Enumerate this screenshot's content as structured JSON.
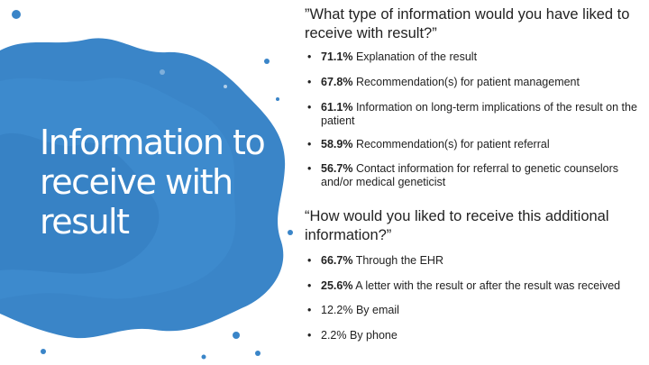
{
  "colors": {
    "splash": "#3a85c8",
    "splash_dark": "#2e6fae",
    "text": "#222222",
    "title": "#ffffff"
  },
  "title": "Information to receive with result",
  "question1": "”What type of information would you have liked to receive with result?”",
  "list1": [
    {
      "pct": "71.1%",
      "text": "Explanation of the result"
    },
    {
      "pct": "67.8%",
      "text": "Recommendation(s) for patient management"
    },
    {
      "pct": "61.1%",
      "text": "Information on long-term implications of the result on the patient"
    },
    {
      "pct": "58.9%",
      "text": "Recommendation(s) for patient referral"
    },
    {
      "pct": "56.7%",
      "text": "Contact information for referral to genetic counselors and/or medical geneticist"
    }
  ],
  "question2": "“How would you liked to receive this additional information?”",
  "list2": [
    {
      "pct": "66.7%",
      "text": "Through the EHR"
    },
    {
      "pct": "25.6%",
      "text": "A letter with the result or after the result was received"
    },
    {
      "pct": "12.2%",
      "text": "By email"
    },
    {
      "pct": "2.2%",
      "text": "By phone"
    }
  ]
}
